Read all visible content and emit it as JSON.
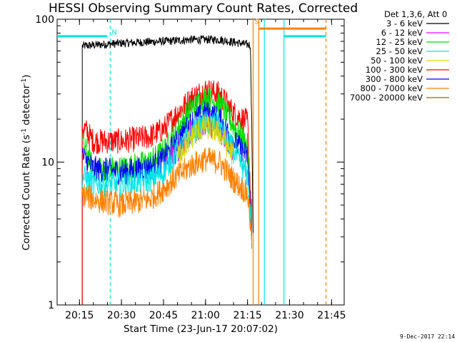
{
  "chart_data": {
    "type": "line",
    "title": "HESSI Observing Summary Count Rates, Corrected",
    "xlabel": "Start Time (23-Jun-17 20:07:02)",
    "ylabel": "Corrected Count Rate (s⁻¹ detector⁻¹)",
    "ylabel_parts": {
      "main": "Corrected Count Rate (s",
      "exp1": "-1",
      "mid": " detector",
      "exp2": "-1",
      "end": ")"
    },
    "yscale": "log",
    "xlim": [
      "20:07:02",
      "21:49:30"
    ],
    "ylim": [
      1,
      100
    ],
    "x_ticks": [
      "20:15",
      "20:30",
      "20:45",
      "21:00",
      "21:15",
      "21:30",
      "21:45"
    ],
    "y_ticks": [
      "1",
      "10",
      "100"
    ],
    "legend": {
      "position": "right",
      "header": "Det 1,3,6, Att 0",
      "entries": [
        {
          "label": "3 - 6 keV",
          "color": "#000000"
        },
        {
          "label": "6 - 12 keV",
          "color": "#ff00ff"
        },
        {
          "label": "12 - 25 keV",
          "color": "#00dd00"
        },
        {
          "label": "25 - 50 keV",
          "color": "#00e5e5"
        },
        {
          "label": "50 - 100 keV",
          "color": "#d6d600"
        },
        {
          "label": "100 - 300 keV",
          "color": "#ff0000"
        },
        {
          "label": "300 - 800 keV",
          "color": "#0000ff"
        },
        {
          "label": "800 - 7000 keV",
          "color": "#ff8000"
        },
        {
          "label": "7000 - 20000 keV",
          "color": "#9a6400"
        }
      ]
    },
    "series": [
      {
        "name": "3 - 6 keV",
        "color": "#000000",
        "points": [
          [
            "20:16:00",
            1
          ],
          [
            "20:16:00",
            65
          ],
          [
            "20:30",
            68
          ],
          [
            "20:45",
            70
          ],
          [
            "20:55",
            72
          ],
          [
            "21:05",
            72
          ],
          [
            "21:16",
            66
          ],
          [
            "21:16:30",
            20
          ],
          [
            "21:17",
            3
          ]
        ]
      },
      {
        "name": "100 - 300 keV",
        "color": "#ff0000",
        "points": [
          [
            "20:16:00",
            1
          ],
          [
            "20:16:00",
            18
          ],
          [
            "20:20",
            14
          ],
          [
            "20:30",
            14
          ],
          [
            "20:40",
            15
          ],
          [
            "20:45",
            17
          ],
          [
            "20:50",
            22
          ],
          [
            "20:55",
            28
          ],
          [
            "21:00",
            32
          ],
          [
            "21:05",
            30
          ],
          [
            "21:10",
            22
          ],
          [
            "21:15",
            19
          ],
          [
            "21:16:30",
            4
          ]
        ]
      },
      {
        "name": "12 - 25 keV",
        "color": "#00dd00",
        "points": [
          [
            "20:16:00",
            14
          ],
          [
            "20:20",
            9
          ],
          [
            "20:30",
            9
          ],
          [
            "20:40",
            10
          ],
          [
            "20:45",
            12
          ],
          [
            "20:50",
            17
          ],
          [
            "20:55",
            24
          ],
          [
            "21:00",
            28
          ],
          [
            "21:05",
            26
          ],
          [
            "21:10",
            18
          ],
          [
            "21:15",
            13
          ],
          [
            "21:16:30",
            3
          ]
        ]
      },
      {
        "name": "300 - 800 keV",
        "color": "#0000ff",
        "points": [
          [
            "20:16:00",
            11
          ],
          [
            "20:20",
            9
          ],
          [
            "20:30",
            8.5
          ],
          [
            "20:40",
            9
          ],
          [
            "20:45",
            10.5
          ],
          [
            "20:50",
            14
          ],
          [
            "20:55",
            19
          ],
          [
            "21:00",
            22
          ],
          [
            "21:05",
            20
          ],
          [
            "21:10",
            14
          ],
          [
            "21:15",
            11
          ],
          [
            "21:16:30",
            3
          ]
        ]
      },
      {
        "name": "6 - 12 keV",
        "color": "#ff00ff",
        "points": [
          [
            "20:45",
            9
          ],
          [
            "20:50",
            12
          ],
          [
            "20:55",
            16
          ],
          [
            "21:00",
            19
          ],
          [
            "21:05",
            17
          ],
          [
            "21:10",
            12
          ]
        ]
      },
      {
        "name": "25 - 50 keV",
        "color": "#00e5e5",
        "points": [
          [
            "20:16:00",
            8
          ],
          [
            "20:20",
            7
          ],
          [
            "20:30",
            7
          ],
          [
            "20:40",
            7.5
          ],
          [
            "20:45",
            8.5
          ],
          [
            "20:50",
            12
          ],
          [
            "20:55",
            16
          ],
          [
            "21:00",
            19
          ],
          [
            "21:05",
            18
          ],
          [
            "21:10",
            12
          ],
          [
            "21:15",
            8
          ],
          [
            "21:16:30",
            3
          ]
        ]
      },
      {
        "name": "50 - 100 keV",
        "color": "#d6d600",
        "points": [
          [
            "20:50",
            11
          ],
          [
            "20:55",
            15
          ],
          [
            "21:00",
            18
          ],
          [
            "21:05",
            16
          ],
          [
            "21:10",
            11
          ]
        ]
      },
      {
        "name": "800 - 7000 keV",
        "color": "#ff8000",
        "points": [
          [
            "20:16:00",
            6
          ],
          [
            "20:20",
            5.5
          ],
          [
            "20:30",
            5
          ],
          [
            "20:40",
            5.5
          ],
          [
            "20:45",
            6.5
          ],
          [
            "20:50",
            8
          ],
          [
            "20:55",
            9.5
          ],
          [
            "21:00",
            10.5
          ],
          [
            "21:05",
            10
          ],
          [
            "21:10",
            7.5
          ],
          [
            "21:15",
            6
          ],
          [
            "21:16:30",
            3
          ]
        ]
      }
    ],
    "annotations": [
      {
        "text": "N",
        "x": "20:26",
        "y": 78,
        "color": "#00e5e5"
      },
      {
        "text": "S",
        "x": "21:17",
        "y": 93,
        "color": "#ff8000"
      }
    ],
    "markers": {
      "vertical_lines": [
        {
          "x": "20:26:00",
          "color": "#00e5e5",
          "style": "dashed"
        },
        {
          "x": "21:17:00",
          "color": "#ff8000",
          "style": "solid"
        },
        {
          "x": "21:19:00",
          "color": "#ff8000",
          "style": "solid"
        },
        {
          "x": "21:21:00",
          "color": "#00e5e5",
          "style": "solid"
        },
        {
          "x": "21:28:00",
          "color": "#00e5e5",
          "style": "solid"
        },
        {
          "x": "21:43:00",
          "color": "#ff8000",
          "style": "dashed"
        }
      ],
      "horizontal_segments": [
        {
          "x1": "20:07:02",
          "x2": "20:25:00",
          "y": 76,
          "color": "#00e5e5",
          "width": 3
        },
        {
          "x1": "21:19:00",
          "x2": "21:43:00",
          "y": 86,
          "color": "#ff8000",
          "width": 3
        },
        {
          "x1": "21:28:00",
          "x2": "21:43:00",
          "y": 76,
          "color": "#00e5e5",
          "width": 3
        }
      ]
    }
  },
  "timestamp": "9-Dec-2017 22:14"
}
